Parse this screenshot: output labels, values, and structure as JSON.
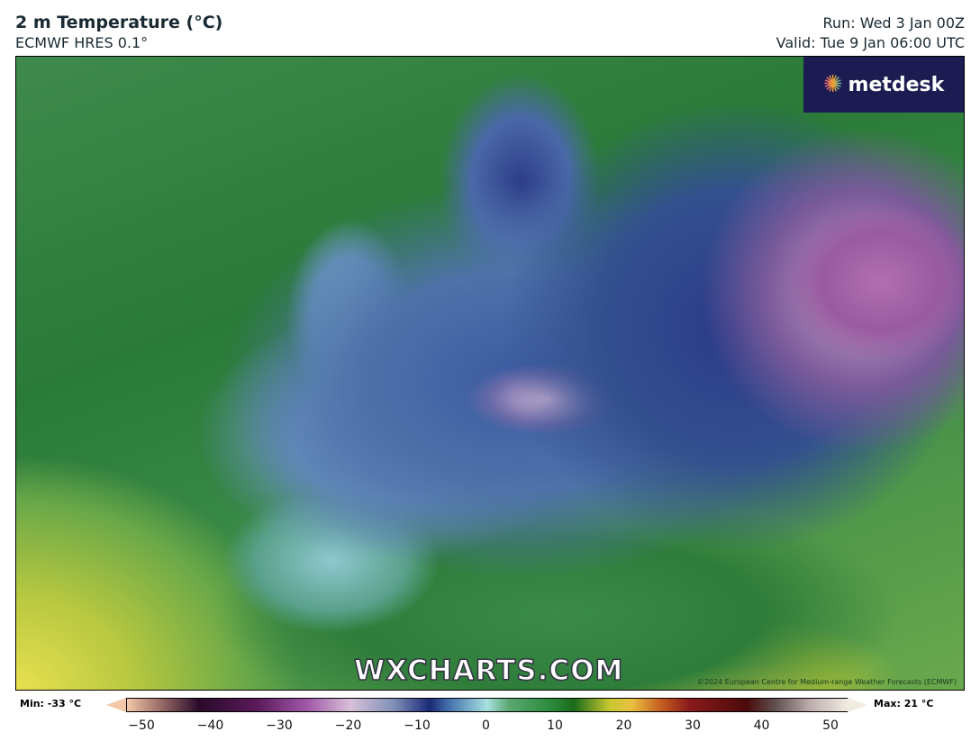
{
  "header": {
    "title": "2 m Temperature (°C)",
    "model": "ECMWF HRES 0.1°",
    "run": "Run: Wed 3 Jan 00Z",
    "valid": "Valid: Tue 9 Jan 06:00 UTC"
  },
  "map": {
    "watermark": "WXCHARTS.COM",
    "copyright": "©2024 European Centre for Medium-range Weather Forecasts (ECMWF)",
    "logo": "metdesk",
    "variable": "2 m temperature",
    "unit": "°C"
  },
  "colorbar": {
    "min_label": "Min: -33 °C",
    "max_label": "Max: 21 °C",
    "ticks": [
      "−50",
      "−40",
      "−30",
      "−20",
      "−10",
      "0",
      "10",
      "20",
      "30",
      "40",
      "50"
    ],
    "range": [
      -50,
      50
    ]
  }
}
